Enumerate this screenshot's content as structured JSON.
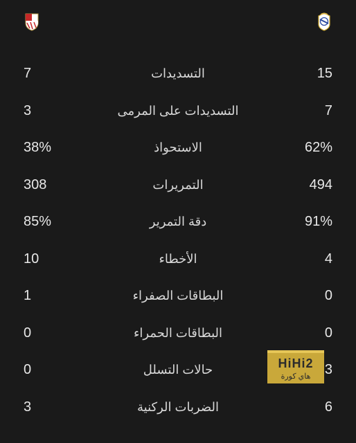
{
  "teams": {
    "home_name": "sevilla",
    "away_name": "real-madrid",
    "home_crest_colors": {
      "body": "#ffffff",
      "stripe": "#c62828",
      "outline": "#b89a4a"
    },
    "away_crest_colors": {
      "body": "#ffffff",
      "blue": "#2b4aa0",
      "gold": "#d4af37",
      "crown": "#e0b84a"
    }
  },
  "stats": [
    {
      "label": "التسديدات",
      "home": "7",
      "away": "15"
    },
    {
      "label": "التسديدات على المرمى",
      "home": "3",
      "away": "7"
    },
    {
      "label": "الاستحواذ",
      "home": "38%",
      "away": "62%"
    },
    {
      "label": "التمريرات",
      "home": "308",
      "away": "494"
    },
    {
      "label": "دقة التمرير",
      "home": "85%",
      "away": "91%"
    },
    {
      "label": "الأخطاء",
      "home": "10",
      "away": "4"
    },
    {
      "label": "البطاقات الصفراء",
      "home": "1",
      "away": "0"
    },
    {
      "label": "البطاقات الحمراء",
      "home": "0",
      "away": "0"
    },
    {
      "label": "حالات التسلل",
      "home": "0",
      "away": "3"
    },
    {
      "label": "الضربات الركنية",
      "home": "3",
      "away": "6"
    }
  ],
  "watermark": {
    "main": "HiHi2",
    "sub": "هاي كورة"
  },
  "colors": {
    "bg": "#1a1a1a",
    "text": "#e8e8e8",
    "label": "#d8d8d8",
    "wm_bg": "#c9a83a",
    "wm_border": "#e6c657",
    "wm_text": "#2b2b2b"
  }
}
